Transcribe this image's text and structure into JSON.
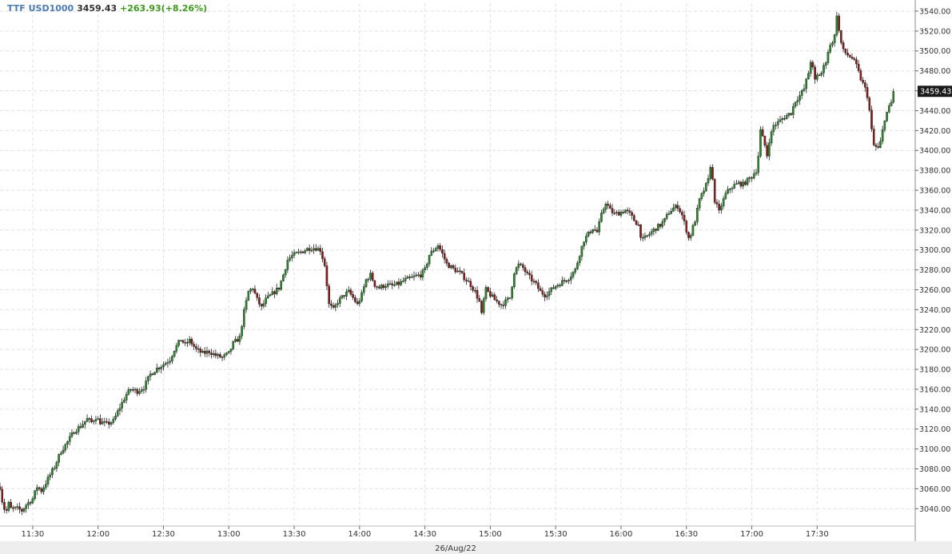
{
  "header": {
    "symbol": "TTF USD1000",
    "last": "3459.43",
    "change": "+263.93(+8.26%)"
  },
  "colors": {
    "up": "#2a8a2a",
    "down": "#8b1a1a",
    "wick": "#222222",
    "grid": "#e2e2e2",
    "price_tag_bg": "#1a1a1a",
    "axis_band": "#eeeeee"
  },
  "chart_data": {
    "type": "candlestick",
    "title": "",
    "date_label": "26/Aug/22",
    "ylim": [
      3025,
      3548
    ],
    "y_ticks": [
      3040,
      3060,
      3080,
      3100,
      3120,
      3140,
      3160,
      3180,
      3200,
      3220,
      3240,
      3260,
      3280,
      3300,
      3320,
      3340,
      3360,
      3380,
      3400,
      3420,
      3440,
      3460,
      3480,
      3500,
      3520,
      3540
    ],
    "y_tick_labels": [
      "3040.00",
      "3060.00",
      "3080.00",
      "3100.00",
      "3120.00",
      "3140.00",
      "3160.00",
      "3180.00",
      "3200.00",
      "3220.00",
      "3240.00",
      "3260.00",
      "3280.00",
      "3300.00",
      "3320.00",
      "3340.00",
      "3360.00",
      "3380.00",
      "3400.00",
      "3420.00",
      "3440.00",
      "3460.00",
      "3480.00",
      "3500.00",
      "3520.00",
      "3540.00"
    ],
    "x_range_minutes": [
      675,
      1095
    ],
    "x_ticks_minutes": [
      690,
      720,
      750,
      780,
      810,
      840,
      870,
      900,
      930,
      960,
      990,
      1020,
      1050
    ],
    "x_tick_labels": [
      "11:30",
      "12:00",
      "12:30",
      "13:00",
      "13:30",
      "14:00",
      "14:30",
      "15:00",
      "15:30",
      "16:00",
      "16:30",
      "17:00",
      "17:30"
    ],
    "last_price": 3459.43,
    "last_price_label": "3459.43",
    "close_path": [
      [
        675,
        3062
      ],
      [
        676,
        3048
      ],
      [
        677,
        3040
      ],
      [
        678,
        3038
      ],
      [
        679,
        3045
      ],
      [
        680,
        3040
      ],
      [
        683,
        3040
      ],
      [
        685,
        3038
      ],
      [
        687,
        3044
      ],
      [
        690,
        3050
      ],
      [
        692,
        3062
      ],
      [
        694,
        3058
      ],
      [
        697,
        3070
      ],
      [
        700,
        3082
      ],
      [
        703,
        3098
      ],
      [
        706,
        3107
      ],
      [
        709,
        3118
      ],
      [
        712,
        3123
      ],
      [
        715,
        3130
      ],
      [
        717,
        3127
      ],
      [
        719,
        3132
      ],
      [
        721,
        3127
      ],
      [
        724,
        3125
      ],
      [
        727,
        3128
      ],
      [
        730,
        3142
      ],
      [
        733,
        3155
      ],
      [
        735,
        3160
      ],
      [
        738,
        3158
      ],
      [
        741,
        3162
      ],
      [
        744,
        3175
      ],
      [
        747,
        3181
      ],
      [
        750,
        3185
      ],
      [
        753,
        3190
      ],
      [
        755,
        3200
      ],
      [
        758,
        3210
      ],
      [
        760,
        3205
      ],
      [
        762,
        3209
      ],
      [
        765,
        3200
      ],
      [
        768,
        3196
      ],
      [
        771,
        3198
      ],
      [
        774,
        3194
      ],
      [
        777,
        3192
      ],
      [
        780,
        3196
      ],
      [
        782,
        3206
      ],
      [
        785,
        3212
      ],
      [
        787,
        3238
      ],
      [
        789,
        3258
      ],
      [
        791,
        3262
      ],
      [
        793,
        3250
      ],
      [
        795,
        3242
      ],
      [
        797,
        3250
      ],
      [
        800,
        3256
      ],
      [
        803,
        3262
      ],
      [
        805,
        3275
      ],
      [
        807,
        3290
      ],
      [
        809,
        3294
      ],
      [
        811,
        3296
      ],
      [
        813,
        3298
      ],
      [
        815,
        3300
      ],
      [
        817,
        3302
      ],
      [
        820,
        3302
      ],
      [
        822,
        3300
      ],
      [
        824,
        3285
      ],
      [
        825,
        3265
      ],
      [
        826,
        3245
      ],
      [
        828,
        3240
      ],
      [
        830,
        3248
      ],
      [
        833,
        3255
      ],
      [
        835,
        3258
      ],
      [
        837,
        3252
      ],
      [
        839,
        3245
      ],
      [
        841,
        3255
      ],
      [
        843,
        3270
      ],
      [
        845,
        3275
      ],
      [
        847,
        3265
      ],
      [
        849,
        3262
      ],
      [
        852,
        3265
      ],
      [
        855,
        3264
      ],
      [
        858,
        3266
      ],
      [
        861,
        3270
      ],
      [
        864,
        3272
      ],
      [
        866,
        3274
      ],
      [
        868,
        3275
      ],
      [
        870,
        3280
      ],
      [
        872,
        3295
      ],
      [
        874,
        3300
      ],
      [
        876,
        3305
      ],
      [
        878,
        3296
      ],
      [
        880,
        3286
      ],
      [
        883,
        3281
      ],
      [
        886,
        3277
      ],
      [
        889,
        3270
      ],
      [
        891,
        3265
      ],
      [
        893,
        3258
      ],
      [
        895,
        3248
      ],
      [
        896,
        3235
      ],
      [
        897,
        3250
      ],
      [
        898,
        3260
      ],
      [
        900,
        3255
      ],
      [
        902,
        3250
      ],
      [
        905,
        3245
      ],
      [
        907,
        3248
      ],
      [
        909,
        3252
      ],
      [
        911,
        3278
      ],
      [
        913,
        3285
      ],
      [
        915,
        3282
      ],
      [
        917,
        3275
      ],
      [
        919,
        3270
      ],
      [
        921,
        3265
      ],
      [
        923,
        3258
      ],
      [
        925,
        3255
      ],
      [
        927,
        3258
      ],
      [
        930,
        3264
      ],
      [
        933,
        3268
      ],
      [
        936,
        3272
      ],
      [
        939,
        3280
      ],
      [
        941,
        3296
      ],
      [
        943,
        3310
      ],
      [
        945,
        3316
      ],
      [
        947,
        3322
      ],
      [
        949,
        3318
      ],
      [
        951,
        3335
      ],
      [
        953,
        3348
      ],
      [
        955,
        3340
      ],
      [
        957,
        3336
      ],
      [
        960,
        3338
      ],
      [
        962,
        3340
      ],
      [
        964,
        3336
      ],
      [
        966,
        3330
      ],
      [
        968,
        3325
      ],
      [
        969,
        3315
      ],
      [
        970,
        3310
      ],
      [
        972,
        3314
      ],
      [
        974,
        3318
      ],
      [
        976,
        3322
      ],
      [
        978,
        3325
      ],
      [
        980,
        3330
      ],
      [
        982,
        3338
      ],
      [
        984,
        3342
      ],
      [
        986,
        3344
      ],
      [
        988,
        3335
      ],
      [
        990,
        3320
      ],
      [
        991,
        3312
      ],
      [
        992,
        3316
      ],
      [
        994,
        3330
      ],
      [
        996,
        3350
      ],
      [
        998,
        3360
      ],
      [
        1000,
        3370
      ],
      [
        1001,
        3385
      ],
      [
        1002,
        3370
      ],
      [
        1003,
        3350
      ],
      [
        1005,
        3338
      ],
      [
        1006,
        3345
      ],
      [
        1008,
        3356
      ],
      [
        1010,
        3362
      ],
      [
        1012,
        3365
      ],
      [
        1014,
        3367
      ],
      [
        1016,
        3366
      ],
      [
        1018,
        3370
      ],
      [
        1020,
        3374
      ],
      [
        1022,
        3380
      ],
      [
        1023,
        3395
      ],
      [
        1024,
        3420
      ],
      [
        1026,
        3405
      ],
      [
        1027,
        3395
      ],
      [
        1028,
        3410
      ],
      [
        1030,
        3425
      ],
      [
        1032,
        3428
      ],
      [
        1034,
        3432
      ],
      [
        1036,
        3435
      ],
      [
        1038,
        3438
      ],
      [
        1040,
        3450
      ],
      [
        1042,
        3455
      ],
      [
        1044,
        3462
      ],
      [
        1046,
        3478
      ],
      [
        1047,
        3490
      ],
      [
        1048,
        3482
      ],
      [
        1049,
        3470
      ],
      [
        1050,
        3475
      ],
      [
        1052,
        3478
      ],
      [
        1054,
        3490
      ],
      [
        1055,
        3500
      ],
      [
        1056,
        3505
      ],
      [
        1057,
        3510
      ],
      [
        1058,
        3515
      ],
      [
        1059,
        3537
      ],
      [
        1060,
        3520
      ],
      [
        1061,
        3508
      ],
      [
        1062,
        3500
      ],
      [
        1064,
        3496
      ],
      [
        1066,
        3493
      ],
      [
        1068,
        3485
      ],
      [
        1070,
        3472
      ],
      [
        1072,
        3462
      ],
      [
        1073,
        3455
      ],
      [
        1074,
        3440
      ],
      [
        1075,
        3420
      ],
      [
        1076,
        3405
      ],
      [
        1078,
        3402
      ],
      [
        1079,
        3408
      ],
      [
        1080,
        3420
      ],
      [
        1081,
        3432
      ],
      [
        1082,
        3438
      ],
      [
        1084,
        3448
      ],
      [
        1085,
        3459.43
      ]
    ]
  }
}
